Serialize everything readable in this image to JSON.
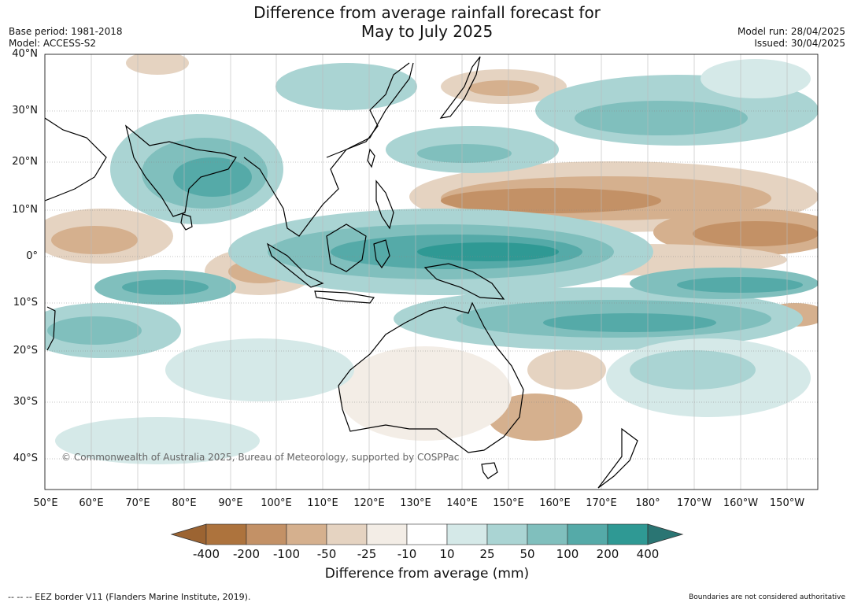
{
  "header": {
    "title_line1": "Difference from average rainfall forecast for",
    "title_line2": "May to July 2025",
    "base_period": "Base period: 1981-2018",
    "model": "Model: ACCESS-S2",
    "model_run": "Model run: 28/04/2025",
    "issued": "Issued: 30/04/2025"
  },
  "map": {
    "lat_labels": [
      "40°N",
      "30°N",
      "20°N",
      "10°N",
      "0°",
      "10°S",
      "20°S",
      "30°S",
      "40°S"
    ],
    "lon_labels": [
      "50°E",
      "60°E",
      "70°E",
      "80°E",
      "90°E",
      "100°E",
      "110°E",
      "120°E",
      "130°E",
      "140°E",
      "150°E",
      "160°E",
      "170°E",
      "180°",
      "170°W",
      "160°W",
      "150°W"
    ],
    "copyright": "© Commonwealth of Australia 2025, Bureau of Meteorology, supported by COSPPac"
  },
  "colorbar": {
    "ticks": [
      "-400",
      "-200",
      "-100",
      "-50",
      "-25",
      "-10",
      "10",
      "25",
      "50",
      "100",
      "200",
      "400"
    ],
    "colors": [
      "#9c6432",
      "#ad733d",
      "#c39166",
      "#d5b08e",
      "#e5d3c1",
      "#f3ede6",
      "#ffffff",
      "#d5e9e8",
      "#aad4d3",
      "#80bfbd",
      "#55aaa8",
      "#2f9994",
      "#2a7573"
    ],
    "title": "Difference from average (mm)"
  },
  "footer": {
    "eez": "--  --  -- EEZ border V11 (Flanders Marine Institute, 2019).",
    "disclaimer": "Boundaries are not considered authoritative"
  }
}
